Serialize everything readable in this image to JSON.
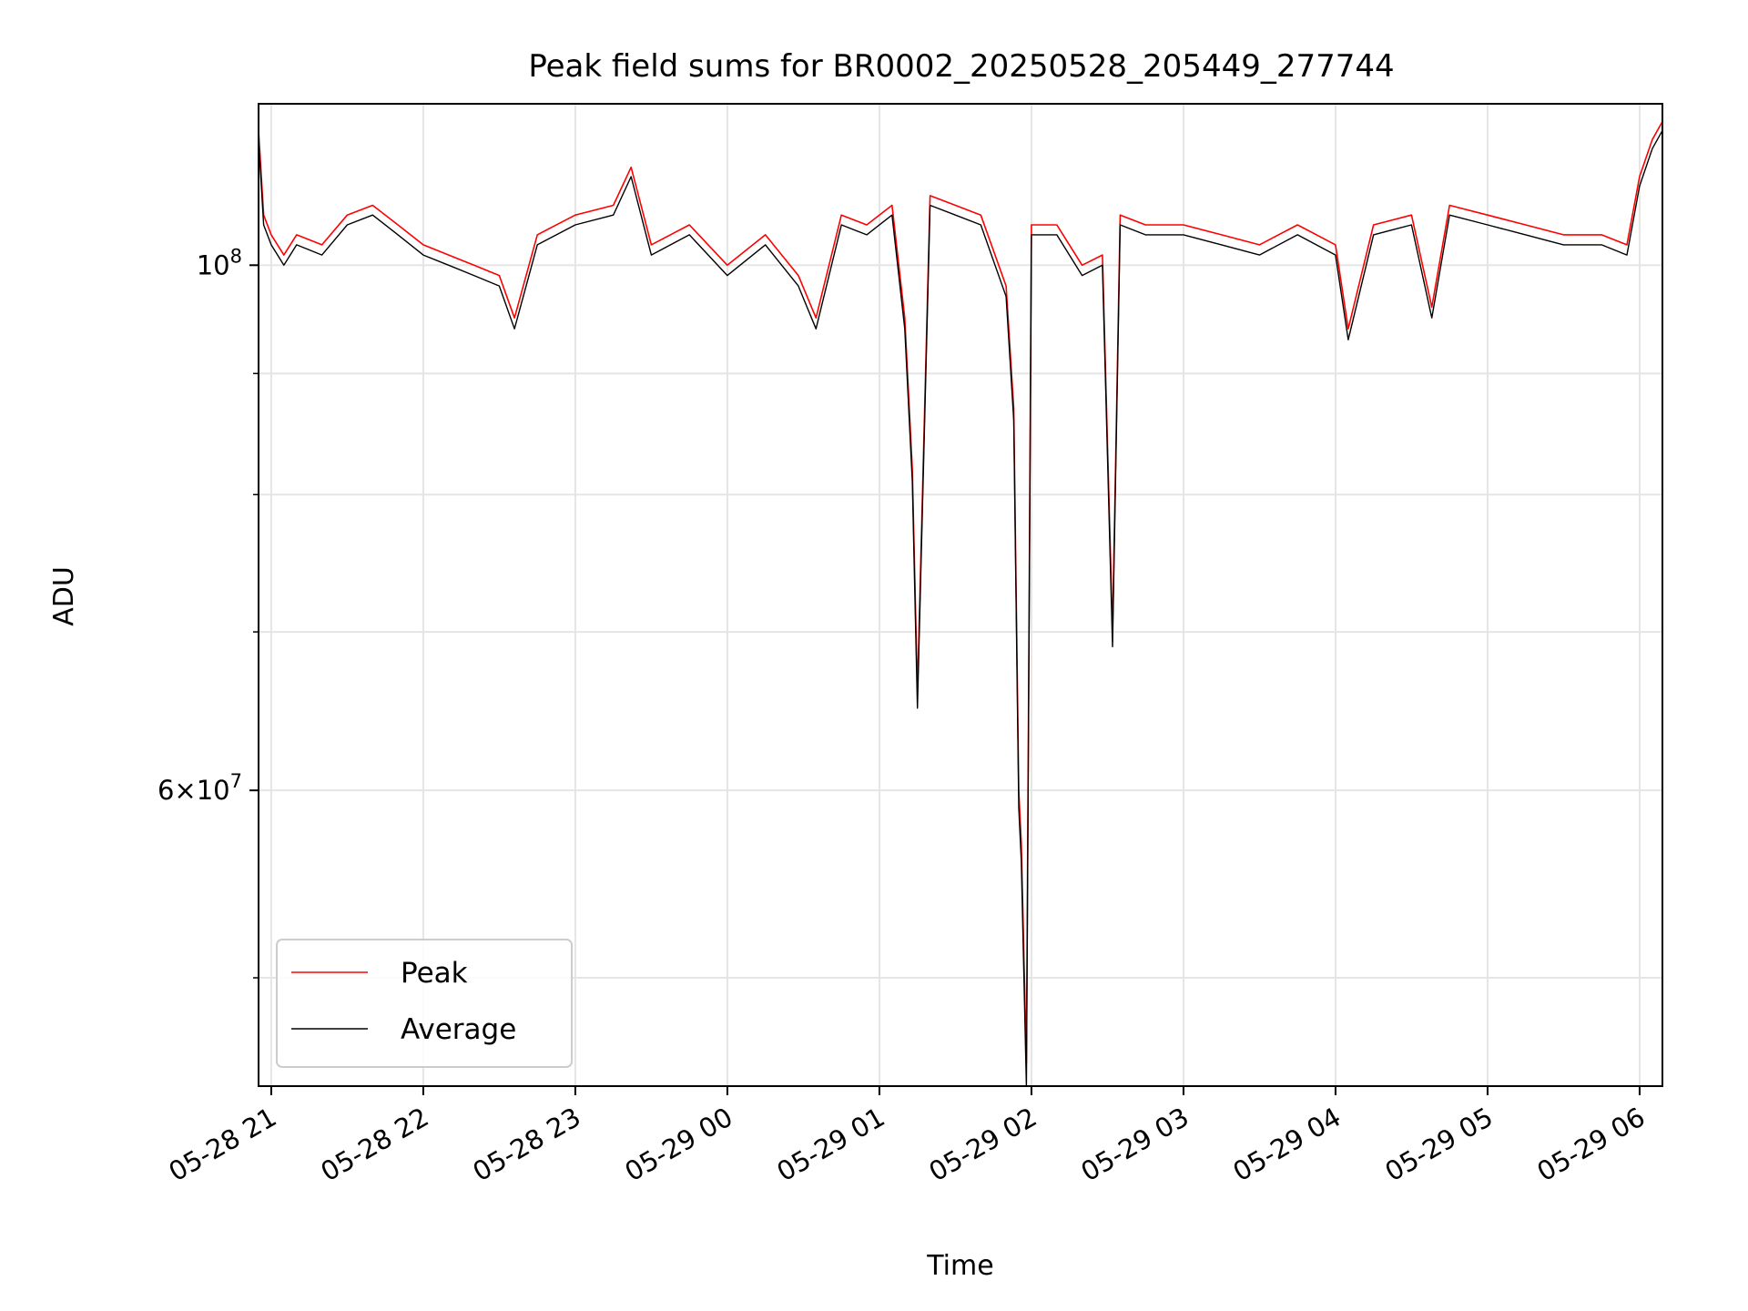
{
  "chart_data": {
    "type": "line",
    "title": "Peak field sums for BR0002_20250528_205449_277744",
    "xlabel": "Time",
    "ylabel": "ADU",
    "y_scale": "log",
    "ylim": [
      45000000,
      117000000
    ],
    "y_major_ticks": [
      {
        "value": 100000000,
        "base": "10",
        "exp": "8"
      },
      {
        "value": 60000000,
        "mantissa": "6",
        "base": "10",
        "exp": "7"
      }
    ],
    "y_minor_gridlines": [
      50000000,
      70000000,
      80000000,
      90000000
    ],
    "x_range": [
      "2025-05-28 20:55",
      "2025-05-29 06:09"
    ],
    "x_tick_labels": [
      "05-28 21",
      "05-28 22",
      "05-28 23",
      "05-29 00",
      "05-29 01",
      "05-29 02",
      "05-29 03",
      "05-29 04",
      "05-29 05",
      "05-29 06"
    ],
    "x_tick_times": [
      "2025-05-28 21:00",
      "2025-05-28 22:00",
      "2025-05-28 23:00",
      "2025-05-29 00:00",
      "2025-05-29 01:00",
      "2025-05-29 02:00",
      "2025-05-29 03:00",
      "2025-05-29 04:00",
      "2025-05-29 05:00",
      "2025-05-29 06:00"
    ],
    "grid": true,
    "legend": {
      "position": "lower-left"
    },
    "series": [
      {
        "name": "Peak",
        "color": "#ff0000"
      },
      {
        "name": "Average",
        "color": "#000000"
      }
    ],
    "x": [
      "2025-05-28 20:55",
      "2025-05-28 20:57",
      "2025-05-28 21:00",
      "2025-05-28 21:05",
      "2025-05-28 21:10",
      "2025-05-28 21:20",
      "2025-05-28 21:30",
      "2025-05-28 21:40",
      "2025-05-28 21:50",
      "2025-05-28 22:00",
      "2025-05-28 22:10",
      "2025-05-28 22:20",
      "2025-05-28 22:30",
      "2025-05-28 22:36",
      "2025-05-28 22:45",
      "2025-05-28 23:00",
      "2025-05-28 23:15",
      "2025-05-28 23:22",
      "2025-05-28 23:30",
      "2025-05-28 23:45",
      "2025-05-29 00:00",
      "2025-05-29 00:15",
      "2025-05-29 00:28",
      "2025-05-29 00:35",
      "2025-05-29 00:45",
      "2025-05-29 00:55",
      "2025-05-29 01:05",
      "2025-05-29 01:10",
      "2025-05-29 01:13",
      "2025-05-29 01:15",
      "2025-05-29 01:20",
      "2025-05-29 01:30",
      "2025-05-29 01:40",
      "2025-05-29 01:50",
      "2025-05-29 01:53",
      "2025-05-29 01:55",
      "2025-05-29 01:56",
      "2025-05-29 01:58",
      "2025-05-29 02:00",
      "2025-05-29 02:10",
      "2025-05-29 02:20",
      "2025-05-29 02:28",
      "2025-05-29 02:32",
      "2025-05-29 02:35",
      "2025-05-29 02:45",
      "2025-05-29 03:00",
      "2025-05-29 03:15",
      "2025-05-29 03:30",
      "2025-05-29 03:45",
      "2025-05-29 04:00",
      "2025-05-29 04:05",
      "2025-05-29 04:15",
      "2025-05-29 04:30",
      "2025-05-29 04:38",
      "2025-05-29 04:45",
      "2025-05-29 05:00",
      "2025-05-29 05:15",
      "2025-05-29 05:30",
      "2025-05-29 05:45",
      "2025-05-29 05:55",
      "2025-05-29 06:00",
      "2025-05-29 06:05",
      "2025-05-29 06:09"
    ],
    "peak": [
      114,
      105,
      103,
      101,
      103,
      102,
      105,
      106,
      104,
      102,
      101,
      100,
      99,
      95,
      103,
      105,
      106,
      110,
      102,
      104,
      100,
      103,
      99,
      95,
      105,
      104,
      106,
      95,
      82,
      66,
      107,
      106,
      105,
      98,
      87,
      60,
      57,
      46,
      104,
      104,
      100,
      101,
      70,
      105,
      104,
      104,
      103,
      102,
      104,
      102,
      94,
      104,
      105,
      96,
      106,
      105,
      104,
      103,
      103,
      102,
      109,
      113,
      115
    ],
    "average": [
      113,
      104,
      102,
      100,
      102,
      101,
      104,
      105,
      103,
      101,
      100,
      99,
      98,
      94,
      102,
      104,
      105,
      109,
      101,
      103,
      99,
      102,
      98,
      94,
      104,
      103,
      105,
      94,
      81,
      65,
      106,
      105,
      104,
      97,
      86,
      59,
      56,
      45,
      103,
      103,
      99,
      100,
      69,
      104,
      103,
      103,
      102,
      101,
      103,
      101,
      93,
      103,
      104,
      95,
      105,
      104,
      103,
      102,
      102,
      101,
      108,
      112,
      114
    ]
  }
}
